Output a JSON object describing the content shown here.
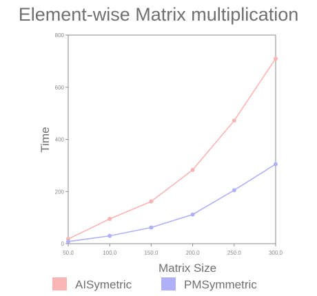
{
  "chart_data": {
    "type": "line",
    "title": "Element-wise Matrix multiplication",
    "xlabel": "Matrix Size",
    "ylabel": "Time",
    "x": [
      50,
      100,
      150,
      200,
      250,
      300
    ],
    "xtick_labels": [
      "50.0",
      "100.0",
      "150.0",
      "200.0",
      "250.0",
      "300.0"
    ],
    "ytick_labels": [
      "0",
      "200",
      "400",
      "600",
      "800"
    ],
    "xlim": [
      50,
      300
    ],
    "ylim": [
      0,
      800
    ],
    "grid": false,
    "legend_position": "bottom",
    "series": [
      {
        "name": "AISymetric",
        "color": "#f9b4b4",
        "values": [
          18,
          95,
          162,
          283,
          472,
          710
        ]
      },
      {
        "name": "PMSymmetric",
        "color": "#b0b0f8",
        "values": [
          8,
          30,
          62,
          112,
          205,
          305
        ]
      }
    ]
  }
}
